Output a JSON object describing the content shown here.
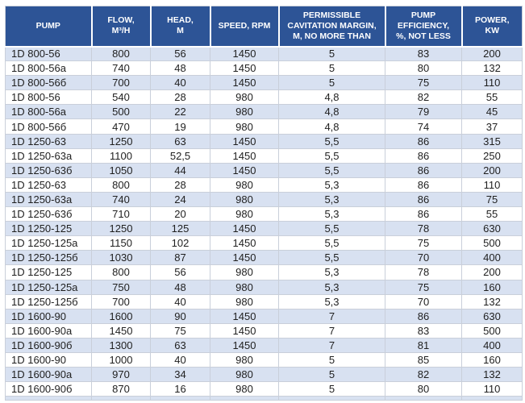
{
  "colors": {
    "header_bg": "#2D5496",
    "header_text": "#ffffff",
    "row_alt_bg": "#D8E1F1",
    "row_bg": "#ffffff",
    "grid_line": "#C9CFDA",
    "text": "#1f1f1f",
    "page_bg": "#ffffff"
  },
  "table": {
    "columns": [
      {
        "id": "pump",
        "label": "PUMP"
      },
      {
        "id": "flow",
        "label": "FLOW,\nM³/H"
      },
      {
        "id": "head",
        "label": "HEAD,\nM"
      },
      {
        "id": "speed",
        "label": "SPEED, RPM"
      },
      {
        "id": "cavitation",
        "label": "PERMISSIBLE\nCAVITATION MARGIN,\nM, NO MORE THAN"
      },
      {
        "id": "efficiency",
        "label": "PUMP\nEFFICIENCY,\n%, NOT LESS"
      },
      {
        "id": "power",
        "label": "POWER,\nKW"
      }
    ],
    "rows": [
      [
        "1D 800-56",
        "800",
        "56",
        "1450",
        "5",
        "83",
        "200"
      ],
      [
        "1D 800-56a",
        "740",
        "48",
        "1450",
        "5",
        "80",
        "132"
      ],
      [
        "1D 800-56б",
        "700",
        "40",
        "1450",
        "5",
        "75",
        "110"
      ],
      [
        "1D 800-56",
        "540",
        "28",
        "980",
        "4,8",
        "82",
        "55"
      ],
      [
        "1D 800-56a",
        "500",
        "22",
        "980",
        "4,8",
        "79",
        "45"
      ],
      [
        "1D 800-56б",
        "470",
        "19",
        "980",
        "4,8",
        "74",
        "37"
      ],
      [
        "1D 1250-63",
        "1250",
        "63",
        "1450",
        "5,5",
        "86",
        "315"
      ],
      [
        "1D 1250-63a",
        "1100",
        "52,5",
        "1450",
        "5,5",
        "86",
        "250"
      ],
      [
        "1D 1250-63б",
        "1050",
        "44",
        "1450",
        "5,5",
        "86",
        "200"
      ],
      [
        "1D 1250-63",
        "800",
        "28",
        "980",
        "5,3",
        "86",
        "110"
      ],
      [
        "1D 1250-63a",
        "740",
        "24",
        "980",
        "5,3",
        "86",
        "75"
      ],
      [
        "1D 1250-63б",
        "710",
        "20",
        "980",
        "5,3",
        "86",
        "55"
      ],
      [
        "1D 1250-125",
        "1250",
        "125",
        "1450",
        "5,5",
        "78",
        "630"
      ],
      [
        "1D 1250-125a",
        "1150",
        "102",
        "1450",
        "5,5",
        "75",
        "500"
      ],
      [
        "1D 1250-125б",
        "1030",
        "87",
        "1450",
        "5,5",
        "70",
        "400"
      ],
      [
        "1D 1250-125",
        "800",
        "56",
        "980",
        "5,3",
        "78",
        "200"
      ],
      [
        "1D 1250-125a",
        "750",
        "48",
        "980",
        "5,3",
        "75",
        "160"
      ],
      [
        "1D 1250-125б",
        "700",
        "40",
        "980",
        "5,3",
        "70",
        "132"
      ],
      [
        "1D 1600-90",
        "1600",
        "90",
        "1450",
        "7",
        "86",
        "630"
      ],
      [
        "1D 1600-90a",
        "1450",
        "75",
        "1450",
        "7",
        "83",
        "500"
      ],
      [
        "1D 1600-90б",
        "1300",
        "63",
        "1450",
        "7",
        "81",
        "400"
      ],
      [
        "1D 1600-90",
        "1000",
        "40",
        "980",
        "5",
        "85",
        "160"
      ],
      [
        "1D 1600-90a",
        "970",
        "34",
        "980",
        "5",
        "82",
        "132"
      ],
      [
        "1D 1600-90б",
        "870",
        "16",
        "980",
        "5",
        "80",
        "110"
      ]
    ],
    "partial_next_row_visible": true
  }
}
